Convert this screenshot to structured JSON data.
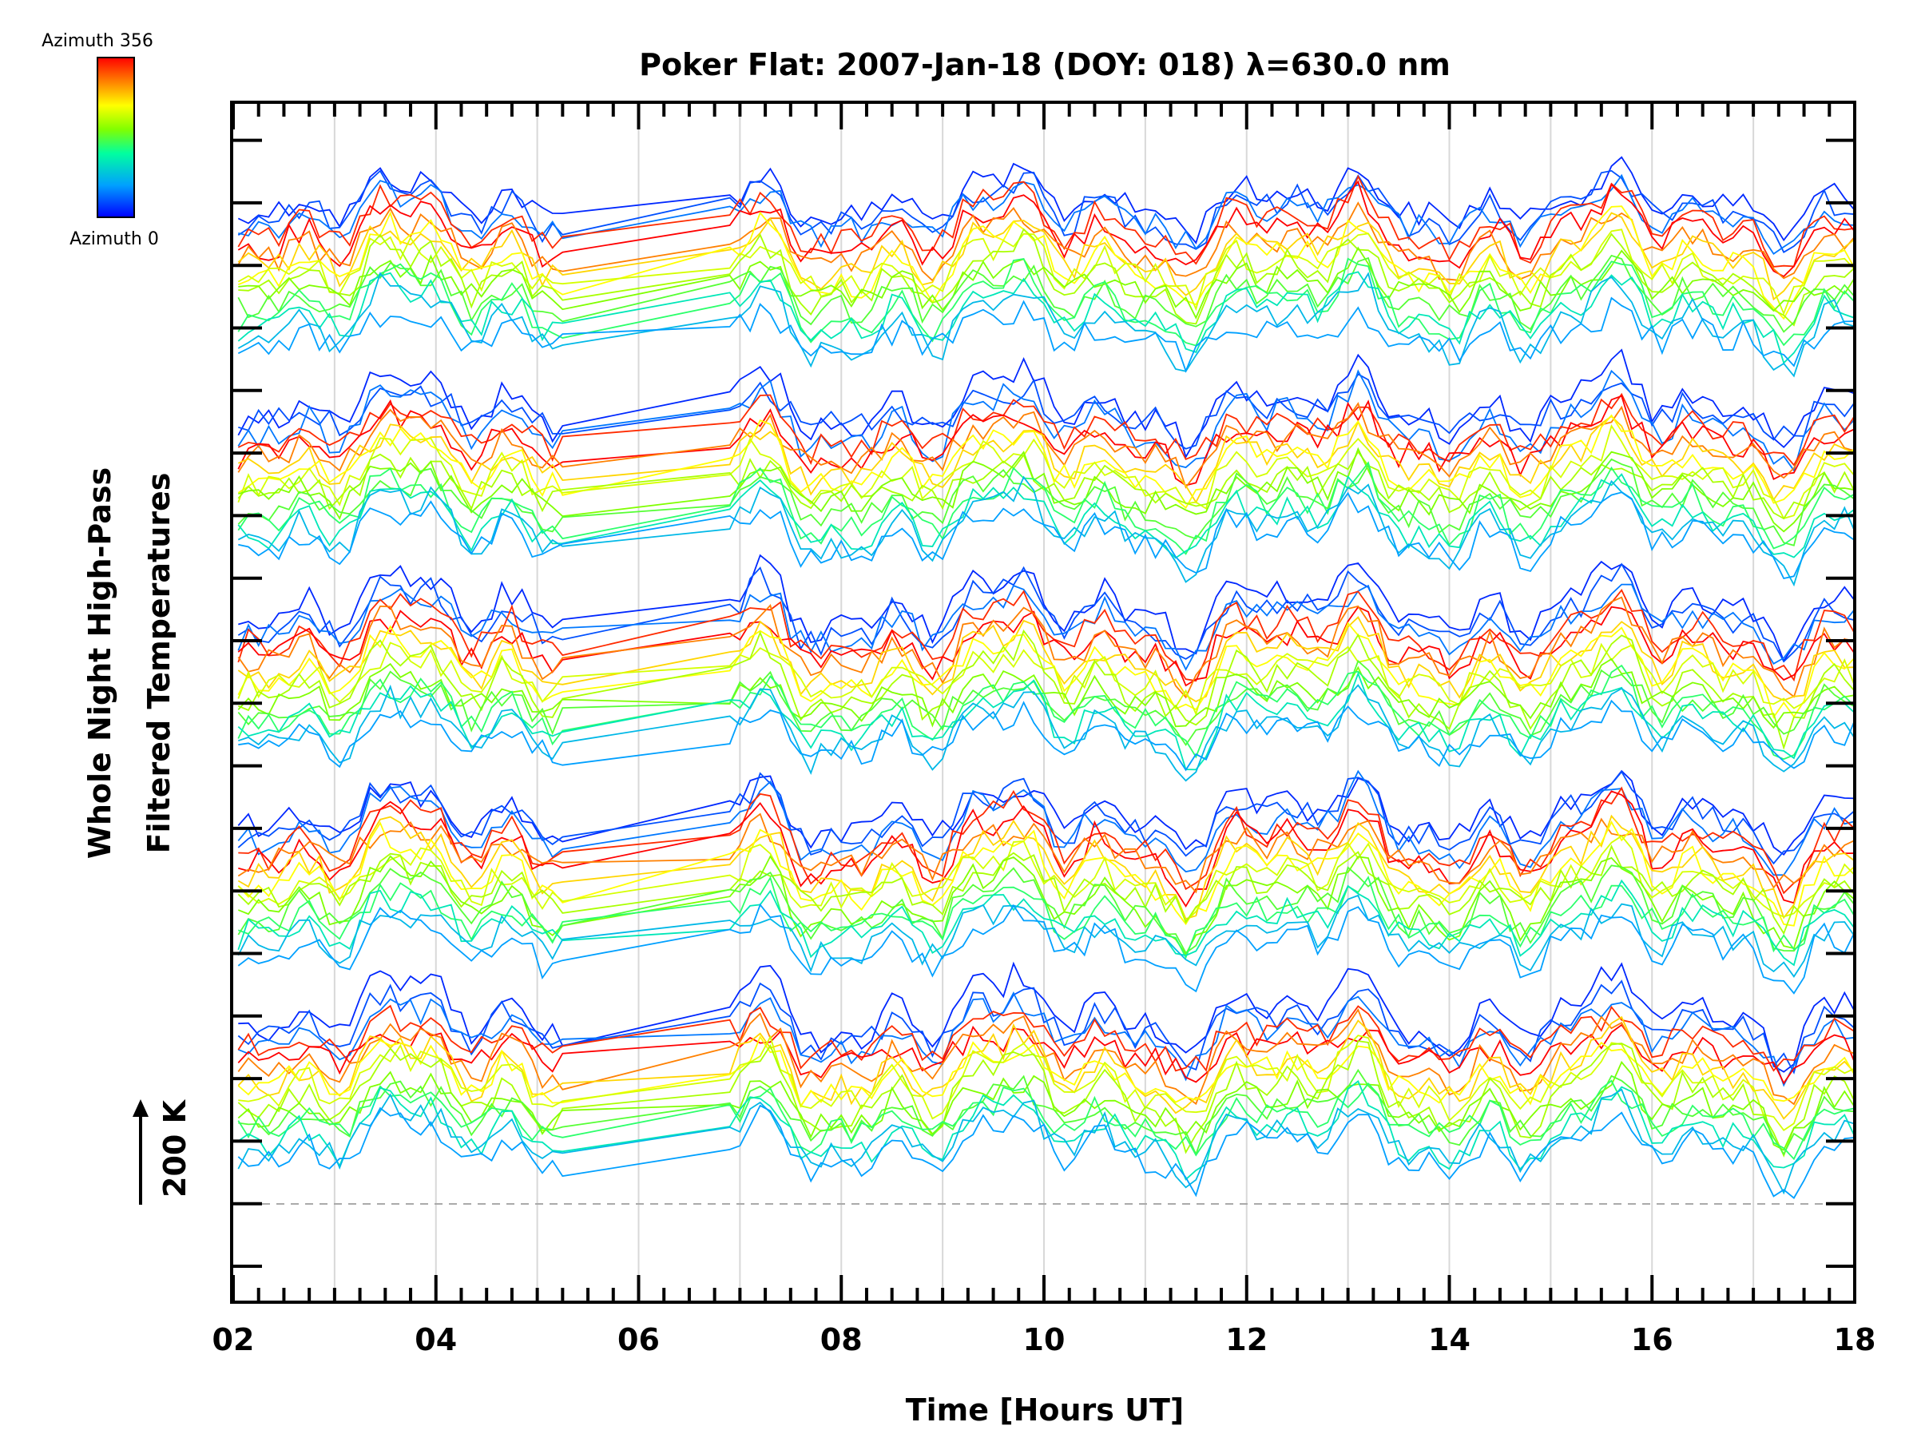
{
  "chart_data": {
    "type": "line",
    "title": "Poker Flat: 2007-Jan-18 (DOY: 018) λ=630.0 nm",
    "xlabel": "Time [Hours UT]",
    "ylabel_line1": "Whole Night High-Pass",
    "ylabel_line2": "Filtered Temperatures",
    "x_tick_labels": [
      "02",
      "04",
      "06",
      "08",
      "10",
      "12",
      "14",
      "16",
      "18"
    ],
    "x_ticks": [
      2,
      4,
      6,
      8,
      10,
      12,
      14,
      16,
      18
    ],
    "xlim": [
      2,
      18
    ],
    "vertical_grid_hours": [
      3,
      4,
      5,
      6,
      7,
      8,
      9,
      10,
      11,
      12,
      13,
      14,
      15,
      16,
      17
    ],
    "grid": true,
    "scale_label": "200 K",
    "baseline_dashed": true,
    "colorbar": {
      "label_top": "Azimuth 356",
      "label_bottom": "Azimuth 0",
      "azimuth_min": 0,
      "azimuth_max": 356,
      "placement": "top-left"
    },
    "data_gap_hours": [
      5.3,
      6.9
    ],
    "series_groups": 5,
    "series_per_group": 16,
    "note_colors": [
      "#0000ff",
      "#00bfff",
      "#00ff80",
      "#c0ff00",
      "#ff8000",
      "#ff0000"
    ]
  }
}
